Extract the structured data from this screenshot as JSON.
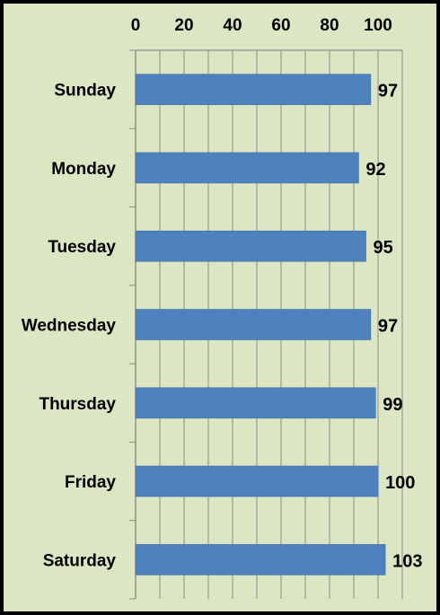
{
  "chart_data": {
    "type": "bar",
    "orientation": "horizontal",
    "categories": [
      "Sunday",
      "Monday",
      "Tuesday",
      "Wednesday",
      "Thursday",
      "Friday",
      "Saturday"
    ],
    "values": [
      97,
      92,
      95,
      97,
      99,
      100,
      103
    ],
    "xlim": [
      0,
      110
    ],
    "x_ticks": [
      "0",
      "20",
      "40",
      "60",
      "80",
      "100"
    ],
    "x_axis_position": "top",
    "grid": true,
    "data_labels": [
      "97",
      "92",
      "95",
      "97",
      "99",
      "100",
      "103"
    ],
    "title": "",
    "xlabel": "",
    "ylabel": ""
  },
  "colors": {
    "bar": "#4f81bd",
    "background": "#dce6c2",
    "grid": "#8c8c8c",
    "border": "#000000"
  }
}
